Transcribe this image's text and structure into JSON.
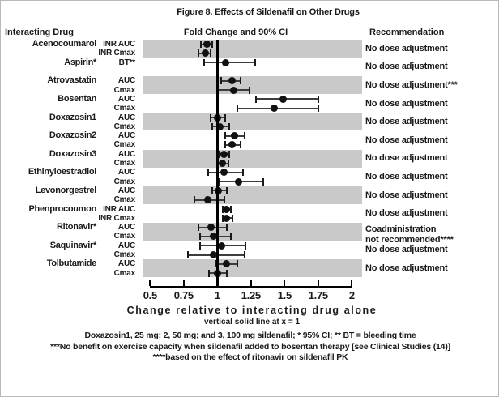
{
  "title": "Figure 8. Effects of Sildenafil on Other Drugs",
  "headers": {
    "left": "Interacting Drug",
    "center": "Fold Change and 90% CI",
    "right": "Recommendation"
  },
  "axis": {
    "min": 0.5,
    "max": 2,
    "ticks": [
      0.5,
      0.75,
      1,
      1.25,
      1.5,
      1.75,
      2
    ],
    "tick_labels": [
      "0.5",
      "0.75",
      "1",
      "1.25",
      "1.5",
      "1.75",
      "2"
    ],
    "xlabel": "Change relative to interacting drug alone",
    "note": "vertical solid line at x = 1",
    "reference_x": 1
  },
  "colors": {
    "band": "#c9c9c9",
    "point": "#111111",
    "ci_line": "#3d3d3d",
    "reference_line": "#000000"
  },
  "chart_data": {
    "type": "forest",
    "x_unit": "fold change vs interacting drug alone",
    "ci_level": "90% CI",
    "groups": [
      {
        "drug": "Acenocoumarol",
        "shaded": true,
        "recommendation": "No dose adjustment",
        "rows": [
          {
            "label": "INR AUC",
            "value": 0.92,
            "ci": [
              0.88,
              0.96
            ]
          },
          {
            "label": "INR Cmax",
            "value": 0.91,
            "ci": [
              0.86,
              0.95
            ]
          }
        ]
      },
      {
        "drug": "Aspirin*",
        "shaded": false,
        "recommendation": "No dose adjustment",
        "rows": [
          {
            "label": "BT**",
            "value": 1.06,
            "ci": [
              0.9,
              1.28
            ]
          }
        ]
      },
      {
        "drug": "Atrovastatin",
        "shaded": true,
        "recommendation": "No dose adjustment***",
        "rows": [
          {
            "label": "AUC",
            "value": 1.11,
            "ci": [
              1.03,
              1.17
            ]
          },
          {
            "label": "Cmax",
            "value": 1.12,
            "ci": [
              1.0,
              1.24
            ]
          }
        ]
      },
      {
        "drug": "Bosentan",
        "shaded": false,
        "recommendation": "No dose adjustment",
        "rows": [
          {
            "label": "AUC",
            "value": 1.49,
            "ci": [
              1.29,
              1.75
            ]
          },
          {
            "label": "Cmax",
            "value": 1.42,
            "ci": [
              1.15,
              1.75
            ]
          }
        ]
      },
      {
        "drug": "Doxazosin1",
        "shaded": true,
        "recommendation": "No dose adjustment",
        "rows": [
          {
            "label": "AUC",
            "value": 1.0,
            "ci": [
              0.95,
              1.06
            ]
          },
          {
            "label": "Cmax",
            "value": 1.02,
            "ci": [
              0.96,
              1.09
            ]
          }
        ]
      },
      {
        "drug": "Doxazosin2",
        "shaded": false,
        "recommendation": "No dose adjustment",
        "rows": [
          {
            "label": "AUC",
            "value": 1.13,
            "ci": [
              1.06,
              1.2
            ]
          },
          {
            "label": "Cmax",
            "value": 1.11,
            "ci": [
              1.06,
              1.17
            ]
          }
        ]
      },
      {
        "drug": "Doxazosin3",
        "shaded": true,
        "recommendation": "No dose adjustment",
        "rows": [
          {
            "label": "AUC",
            "value": 1.05,
            "ci": [
              1.01,
              1.09
            ]
          },
          {
            "label": "Cmax",
            "value": 1.04,
            "ci": [
              1.0,
              1.08
            ]
          }
        ]
      },
      {
        "drug": "Ethinyloestradiol",
        "shaded": false,
        "recommendation": "No dose adjustment",
        "rows": [
          {
            "label": "AUC",
            "value": 1.05,
            "ci": [
              0.93,
              1.19
            ]
          },
          {
            "label": "Cmax",
            "value": 1.16,
            "ci": [
              1.01,
              1.34
            ]
          }
        ]
      },
      {
        "drug": "Levonorgestrel",
        "shaded": true,
        "recommendation": "No dose adjustment",
        "rows": [
          {
            "label": "AUC",
            "value": 1.01,
            "ci": [
              0.96,
              1.07
            ]
          },
          {
            "label": "Cmax",
            "value": 0.93,
            "ci": [
              0.83,
              1.05
            ]
          }
        ]
      },
      {
        "drug": "Phenprocoumon",
        "shaded": false,
        "recommendation": "No dose adjustment",
        "rows": [
          {
            "label": "INR AUC",
            "value": 1.07,
            "ci": [
              1.04,
              1.1
            ]
          },
          {
            "label": "INR Cmax",
            "value": 1.07,
            "ci": [
              1.04,
              1.11
            ]
          }
        ]
      },
      {
        "drug": "Ritonavir*",
        "shaded": true,
        "recommendation": [
          "Coadministration",
          "not recommended****"
        ],
        "rows": [
          {
            "label": "AUC",
            "value": 0.95,
            "ci": [
              0.86,
              1.07
            ]
          },
          {
            "label": "Cmax",
            "value": 0.97,
            "ci": [
              0.87,
              1.1
            ]
          }
        ]
      },
      {
        "drug": "Saquinavir*",
        "shaded": false,
        "recommendation": "No dose adjustment",
        "rows": [
          {
            "label": "AUC",
            "value": 1.03,
            "ci": [
              0.87,
              1.21
            ]
          },
          {
            "label": "Cmax",
            "value": 0.97,
            "ci": [
              0.78,
              1.2
            ]
          }
        ]
      },
      {
        "drug": "Tolbutamide",
        "shaded": true,
        "recommendation": "No dose adjustment",
        "rows": [
          {
            "label": "AUC",
            "value": 1.07,
            "ci": [
              0.99,
              1.15
            ]
          },
          {
            "label": "Cmax",
            "value": 1.0,
            "ci": [
              0.94,
              1.07
            ]
          }
        ]
      }
    ]
  },
  "footnotes": [
    "Doxazosin1, 25 mg; 2, 50 mg; and 3, 100 mg sildenafil; * 95% CI; ** BT = bleeding time",
    "***No benefit on exercise capacity when sildenafil added to bosentan therapy [see Clinical Studies (14)]",
    "****based on the effect of ritonavir on sildenafil PK"
  ]
}
